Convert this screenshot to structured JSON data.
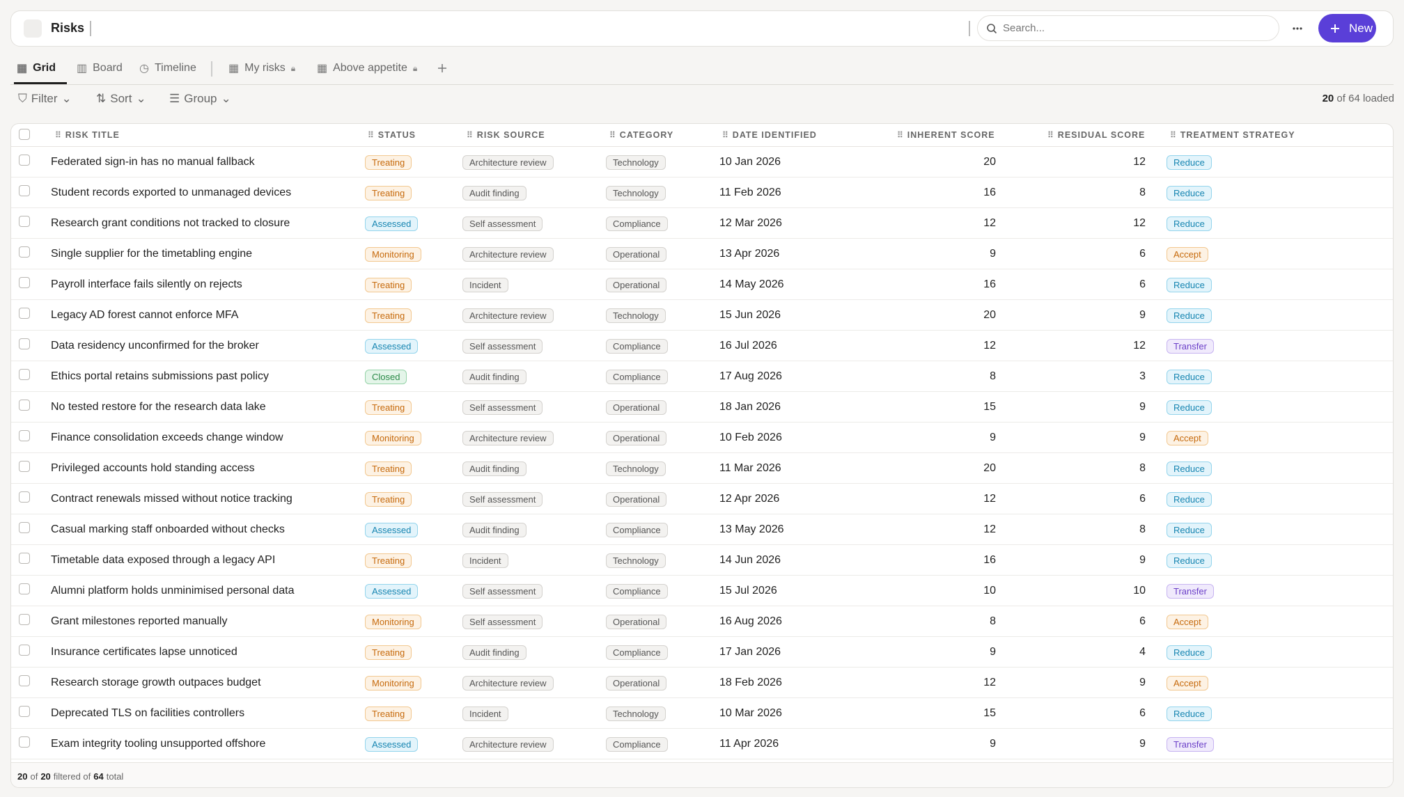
{
  "header": {
    "title": "Risks",
    "search_placeholder": "Search...",
    "new_button": "New"
  },
  "views": [
    "Grid",
    "Board",
    "Timeline",
    "My risks",
    "Above appetite"
  ],
  "toolbar": {
    "filter": "Filter",
    "sort": "Sort",
    "group": "Group",
    "loaded_count": "20",
    "loaded_text": "of 64 loaded"
  },
  "table": {
    "columns": [
      "RISK TITLE",
      "STATUS",
      "RISK SOURCE",
      "CATEGORY",
      "DATE IDENTIFIED",
      "INHERENT SCORE",
      "RESIDUAL SCORE",
      "TREATMENT STRATEGY"
    ],
    "rows": [
      [
        "Federated sign-in has no manual fallback",
        "Treating",
        "Architecture review",
        "Technology",
        "10 Jan 2026",
        "20",
        "12",
        "Reduce"
      ],
      [
        "Student records exported to unmanaged devices",
        "Treating",
        "Audit finding",
        "Technology",
        "11 Feb 2026",
        "16",
        "8",
        "Reduce"
      ],
      [
        "Research grant conditions not tracked to closure",
        "Assessed",
        "Self assessment",
        "Compliance",
        "12 Mar 2026",
        "12",
        "12",
        "Reduce"
      ],
      [
        "Single supplier for the timetabling engine",
        "Monitoring",
        "Architecture review",
        "Operational",
        "13 Apr 2026",
        "9",
        "6",
        "Accept"
      ],
      [
        "Payroll interface fails silently on rejects",
        "Treating",
        "Incident",
        "Operational",
        "14 May 2026",
        "16",
        "6",
        "Reduce"
      ],
      [
        "Legacy AD forest cannot enforce MFA",
        "Treating",
        "Architecture review",
        "Technology",
        "15 Jun 2026",
        "20",
        "9",
        "Reduce"
      ],
      [
        "Data residency unconfirmed for the broker",
        "Assessed",
        "Self assessment",
        "Compliance",
        "16 Jul 2026",
        "12",
        "12",
        "Transfer"
      ],
      [
        "Ethics portal retains submissions past policy",
        "Closed",
        "Audit finding",
        "Compliance",
        "17 Aug 2026",
        "8",
        "3",
        "Reduce"
      ],
      [
        "No tested restore for the research data lake",
        "Treating",
        "Self assessment",
        "Operational",
        "18 Jan 2026",
        "15",
        "9",
        "Reduce"
      ],
      [
        "Finance consolidation exceeds change window",
        "Monitoring",
        "Architecture review",
        "Operational",
        "10 Feb 2026",
        "9",
        "9",
        "Accept"
      ],
      [
        "Privileged accounts hold standing access",
        "Treating",
        "Audit finding",
        "Technology",
        "11 Mar 2026",
        "20",
        "8",
        "Reduce"
      ],
      [
        "Contract renewals missed without notice tracking",
        "Treating",
        "Self assessment",
        "Operational",
        "12 Apr 2026",
        "12",
        "6",
        "Reduce"
      ],
      [
        "Casual marking staff onboarded without checks",
        "Assessed",
        "Audit finding",
        "Compliance",
        "13 May 2026",
        "12",
        "8",
        "Reduce"
      ],
      [
        "Timetable data exposed through a legacy API",
        "Treating",
        "Incident",
        "Technology",
        "14 Jun 2026",
        "16",
        "9",
        "Reduce"
      ],
      [
        "Alumni platform holds unminimised personal data",
        "Assessed",
        "Self assessment",
        "Compliance",
        "15 Jul 2026",
        "10",
        "10",
        "Transfer"
      ],
      [
        "Grant milestones reported manually",
        "Monitoring",
        "Self assessment",
        "Operational",
        "16 Aug 2026",
        "8",
        "6",
        "Accept"
      ],
      [
        "Insurance certificates lapse unnoticed",
        "Treating",
        "Audit finding",
        "Compliance",
        "17 Jan 2026",
        "9",
        "4",
        "Reduce"
      ],
      [
        "Research storage growth outpaces budget",
        "Monitoring",
        "Architecture review",
        "Operational",
        "18 Feb 2026",
        "12",
        "9",
        "Accept"
      ],
      [
        "Deprecated TLS on facilities controllers",
        "Treating",
        "Incident",
        "Technology",
        "10 Mar 2026",
        "15",
        "6",
        "Reduce"
      ],
      [
        "Exam integrity tooling unsupported offshore",
        "Assessed",
        "Architecture review",
        "Compliance",
        "11 Apr 2026",
        "9",
        "9",
        "Transfer"
      ]
    ]
  },
  "footer": {
    "shown": "20",
    "of_text": "of",
    "filtered": "20",
    "filtered_text": "filtered of",
    "total": "64",
    "total_text": "total"
  }
}
